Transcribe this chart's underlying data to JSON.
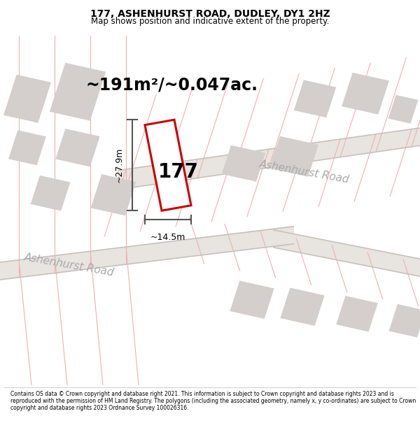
{
  "title": "177, ASHENHURST ROAD, DUDLEY, DY1 2HZ",
  "subtitle": "Map shows position and indicative extent of the property.",
  "area_label": "~191m²/~0.047ac.",
  "property_number": "177",
  "width_label": "~14.5m",
  "height_label": "~27.9m",
  "road_label_upper": "Ashenhurst Road",
  "road_label_lower": "Ashenhurst Road",
  "footer": "Contains OS data © Crown copyright and database right 2021. This information is subject to Crown copyright and database rights 2023 and is reproduced with the permission of HM Land Registry. The polygons (including the associated geometry, namely x, y co-ordinates) are subject to Crown copyright and database rights 2023 Ordnance Survey 100026316.",
  "map_bg": "#f8f6f4",
  "road_fill": "#e8e4e0",
  "block_fill": "#d4cecc",
  "red_outline": "#cc0000",
  "road_line_color": "#f0b0b0",
  "road_edge_color": "#c8c0bc",
  "dim_line_color": "#555555",
  "title_fontsize": 10,
  "subtitle_fontsize": 8.5,
  "area_fontsize": 17,
  "num_fontsize": 20,
  "road_label_fontsize": 11,
  "dim_fontsize": 9
}
